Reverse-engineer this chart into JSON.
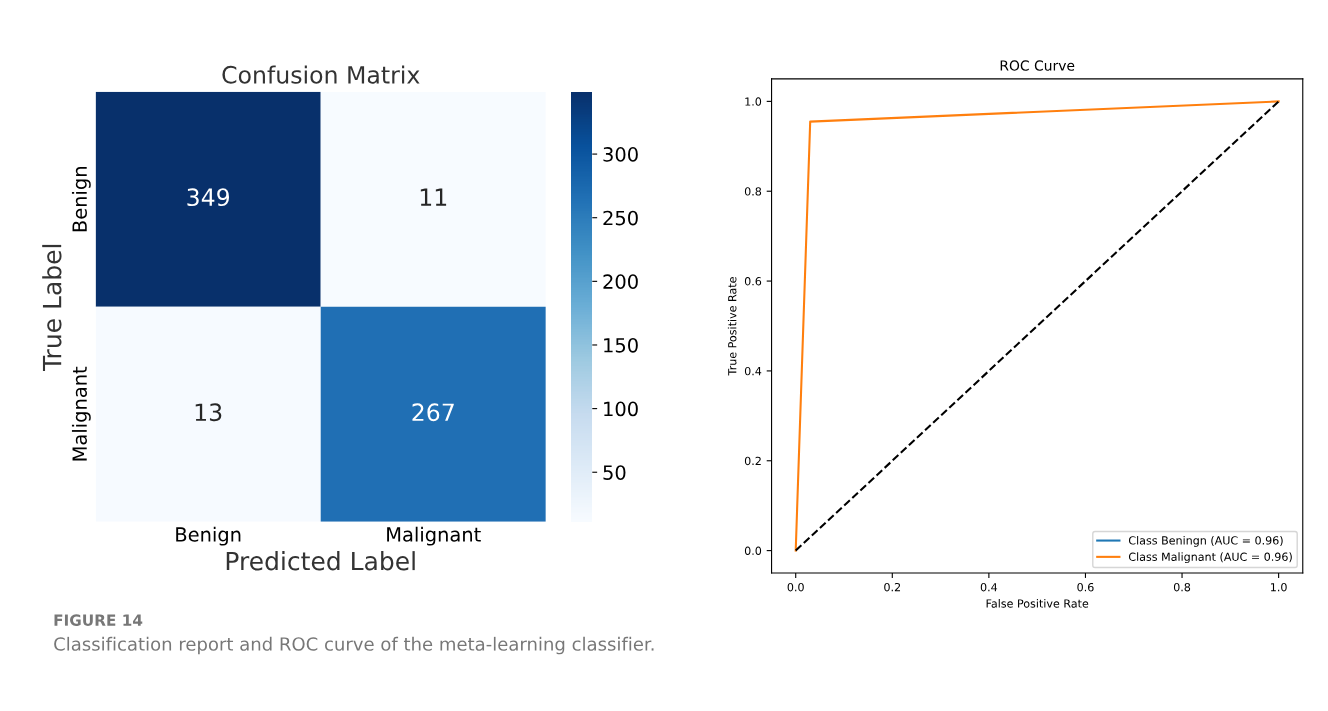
{
  "chart_data": [
    {
      "type": "heatmap",
      "title": "Confusion Matrix",
      "xlabel": "Predicted Label",
      "ylabel": "True Label",
      "categories": [
        "Benign",
        "Malignant"
      ],
      "y_categories": [
        "Benign",
        "Malignant"
      ],
      "cells": [
        [
          349,
          11
        ],
        [
          13,
          267
        ]
      ],
      "clim": [
        11,
        349
      ],
      "cticks": [
        50,
        100,
        150,
        200,
        250,
        300
      ],
      "data_labels": true,
      "annotations": [
        "FIGURE 14",
        "Classification report and ROC curve of the meta-learning classifier."
      ]
    },
    {
      "type": "line",
      "title": "ROC Curve",
      "xlabel": "False Positive Rate",
      "ylabel": "True Positive Rate",
      "xlim": [
        -0.05,
        1.05
      ],
      "xticks": [
        {
          "value": 0,
          "label": "0.0"
        },
        0.2,
        0.4,
        0.6,
        0.8,
        {
          "value": 1,
          "label": "1.0"
        }
      ],
      "ylim": [
        -0.05,
        1.05
      ],
      "yticks": [
        {
          "value": 0,
          "label": "0.0"
        },
        0.2,
        0.4,
        0.6,
        0.8,
        {
          "value": 1,
          "label": "1.0"
        }
      ],
      "legend": "bottom right",
      "grid": false,
      "series": [
        {
          "name": "Class Beningn (AUC = 0.96)",
          "color": "#1f77b4"
        },
        {
          "name": "Class Malignant (AUC = 0.96)",
          "color": "#ff7f0e",
          "x": [
            0,
            0.03,
            1
          ],
          "values": [
            0,
            0.955,
            1
          ]
        },
        {
          "color": "#000000",
          "line_style": "dashed",
          "x": [
            0,
            1
          ],
          "values": [
            0,
            1
          ]
        }
      ]
    }
  ]
}
